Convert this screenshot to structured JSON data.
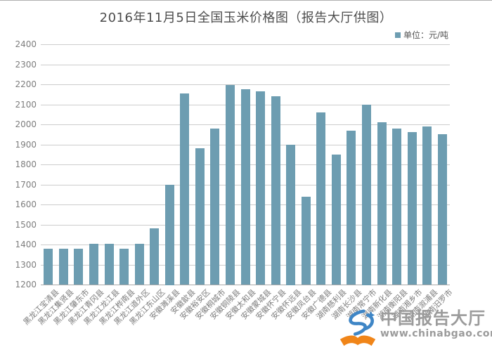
{
  "legend": {
    "label": "单位：元/吨"
  },
  "watermark": {
    "brand": "中国报告大厅",
    "url": "www.chinabgao.com"
  },
  "colors": {
    "bar": "#6d9db1",
    "grid": "#cccccc",
    "axis_line": "#aaaaaa",
    "axis_text": "#7d7d7d",
    "title_text": "#4c4c4c",
    "legend_text": "#555555",
    "watermark_text": "#9b9b9b",
    "logo_blue": "#3f86c6",
    "logo_orange": "#f08519"
  },
  "chart_data": {
    "type": "bar",
    "title": "2016年11月5日全国玉米价格图（报告大厅供图）",
    "xlabel": "",
    "ylabel": "元/吨",
    "legend": "单位：元/吨",
    "legend_position": "top-right",
    "grid": true,
    "ylim": [
      1200,
      2400
    ],
    "ytick_step": 100,
    "categories": [
      "黑龙江宝清县",
      "黑龙江集贤县",
      "黑龙江肇东市",
      "黑龙江青冈县",
      "黑龙江龙江县",
      "黑龙江桦南县",
      "黑龙江道外区",
      "黑龙江东山区",
      "安徽濉溪县",
      "安徽歙县",
      "安徽裕安区",
      "安徽桐城市",
      "安徽铜陵县",
      "安徽太和县",
      "安徽蒙城县",
      "安徽怀宁县",
      "安徽怀远县",
      "安徽凤台县",
      "安徽广德县",
      "湖南慈利县",
      "湖南长沙县",
      "湖南常宁市",
      "湖南新化县",
      "湖南衡阳县",
      "湖南湘乡市",
      "湖南溆浦县",
      "湖南汨罗市"
    ],
    "values": [
      1380,
      1380,
      1380,
      1405,
      1405,
      1380,
      1405,
      1480,
      1700,
      2155,
      1880,
      1980,
      2195,
      2175,
      2165,
      2140,
      1900,
      1640,
      2060,
      1850,
      1970,
      2100,
      2010,
      1980,
      1960,
      1990,
      1950
    ]
  }
}
